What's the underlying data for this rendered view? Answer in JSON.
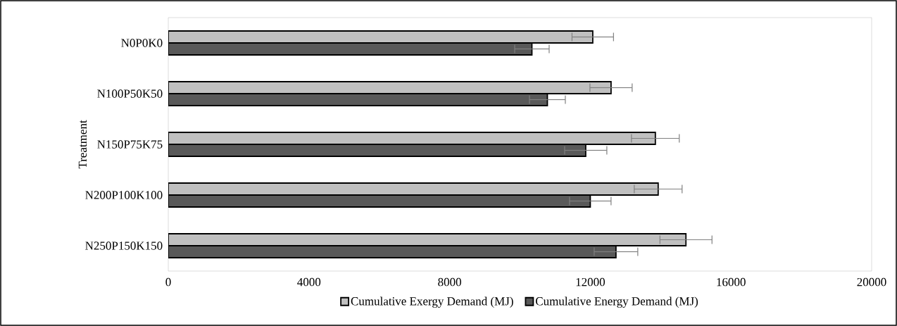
{
  "chart_data": {
    "type": "bar",
    "orientation": "horizontal",
    "ylabel": "Treatment",
    "categories": [
      "N0P0K0",
      "N100P50K50",
      "N150P75K75",
      "N200P100K100",
      "N250P150K150"
    ],
    "series": [
      {
        "name": "Cumulative Exergy Demand (MJ)",
        "color": "#c0c0c0",
        "values": [
          12070,
          12590,
          13850,
          13930,
          14720
        ],
        "errors": [
          590,
          600,
          680,
          680,
          740
        ]
      },
      {
        "name": "Cumulative Energy Demand (MJ)",
        "color": "#595959",
        "values": [
          10340,
          10780,
          11870,
          12000,
          12730
        ],
        "errors": [
          490,
          510,
          600,
          590,
          620
        ]
      }
    ],
    "xlim": [
      0,
      20000
    ],
    "xticks": [
      0,
      4000,
      8000,
      12000,
      16000,
      20000
    ],
    "legend": "bottom"
  }
}
